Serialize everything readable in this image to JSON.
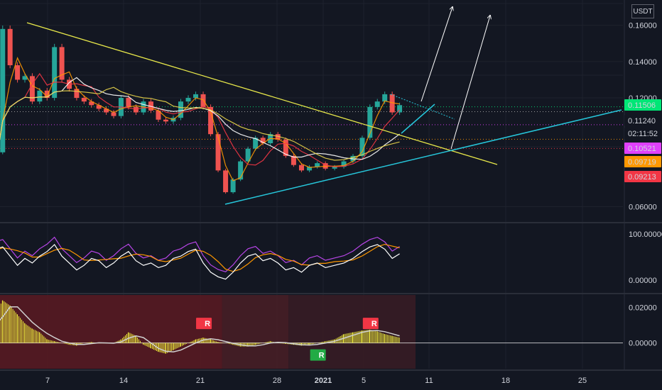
{
  "currency": "USDT",
  "chart_data": {
    "type": "candlestick",
    "x_ticks": [
      "7",
      "14",
      "21",
      "28",
      "2021",
      "5",
      "11",
      "18",
      "25"
    ],
    "price_axis": {
      "ticks": [
        "0.16000",
        "0.14000",
        "0.12000",
        "0.06000"
      ],
      "tick_values": [
        0.16,
        0.14,
        0.12,
        0.06
      ],
      "ylim": [
        0.052,
        0.172
      ]
    },
    "price_labels": [
      {
        "text": "0.11506",
        "value": 0.11506,
        "bg": "#00e676",
        "fg": "#000000"
      },
      {
        "text": "0.11240",
        "value": 0.1124,
        "bg": "#131722",
        "fg": "#d1d4dc"
      },
      {
        "text": "02:11:52",
        "value": 0.108,
        "bg": "#131722",
        "fg": "#d1d4dc"
      },
      {
        "text": "0.10521",
        "value": 0.10521,
        "bg": "#e040fb",
        "fg": "#ffffff"
      },
      {
        "text": "0.09719",
        "value": 0.09719,
        "bg": "#ff9800",
        "fg": "#000000"
      },
      {
        "text": "0.09213",
        "value": 0.09213,
        "bg": "#f23645",
        "fg": "#ffffff"
      }
    ],
    "price_series": [
      0.074,
      0.09,
      0.158,
      0.138,
      0.13,
      0.132,
      0.118,
      0.124,
      0.12,
      0.148,
      0.13,
      0.125,
      0.12,
      0.118,
      0.116,
      0.114,
      0.112,
      0.11,
      0.12,
      0.115,
      0.112,
      0.118,
      0.113,
      0.108,
      0.107,
      0.109,
      0.118,
      0.12,
      0.122,
      0.115,
      0.1,
      0.08,
      0.068,
      0.075,
      0.085,
      0.092,
      0.098,
      0.095,
      0.1,
      0.097,
      0.088,
      0.083,
      0.08,
      0.082,
      0.084,
      0.081,
      0.082,
      0.085,
      0.088,
      0.098,
      0.115,
      0.118,
      0.122,
      0.112,
      0.116
    ],
    "rsi_axis": {
      "ticks": [
        "100.00000",
        "0.00000"
      ],
      "tick_values": [
        100,
        0
      ]
    },
    "rsi_series": [
      55,
      75,
      80,
      60,
      40,
      55,
      45,
      60,
      70,
      85,
      60,
      45,
      30,
      40,
      55,
      50,
      35,
      45,
      60,
      70,
      50,
      40,
      45,
      35,
      40,
      55,
      60,
      70,
      75,
      45,
      25,
      15,
      10,
      25,
      45,
      60,
      65,
      50,
      55,
      45,
      30,
      35,
      25,
      40,
      45,
      35,
      40,
      45,
      55,
      70,
      80,
      85,
      75,
      55,
      65
    ],
    "macd_axis": {
      "ticks": [
        "0.02000",
        "0.00000"
      ],
      "tick_values": [
        0.02,
        0.0
      ],
      "ylim": [
        -0.0145,
        0.027
      ]
    },
    "macd_series": [
      0.004,
      0.016,
      0.024,
      0.021,
      0.016,
      0.011,
      0.008,
      0.006,
      0.002,
      0.001,
      0.0,
      -0.001,
      -0.0015,
      0.0,
      0.0005,
      -0.0002,
      -0.0002,
      0.0,
      0.002,
      0.006,
      0.004,
      -0.001,
      -0.003,
      -0.005,
      -0.006,
      -0.004,
      -0.002,
      0.0,
      0.002,
      0.003,
      0.002,
      0.0005,
      0.0,
      -0.001,
      -0.002,
      -0.002,
      -0.001,
      0.0,
      0.001,
      0.0,
      -0.0005,
      -0.001,
      -0.0015,
      -0.001,
      0.0,
      0.001,
      0.002,
      0.005,
      0.006,
      0.007,
      0.0075,
      0.0065,
      0.005,
      0.004,
      0.003
    ],
    "signals": [
      {
        "label": "R",
        "type": "sell",
        "bar": 29
      },
      {
        "label": "R",
        "type": "buy",
        "bar": 44
      },
      {
        "label": "R",
        "type": "sell",
        "bar": 50
      }
    ],
    "colors": {
      "up": "#26a69a",
      "down": "#ef5350",
      "trend_yellow": "#e8e84a",
      "trend_cyan": "#26c6da",
      "accent_green": "#00e676"
    }
  }
}
